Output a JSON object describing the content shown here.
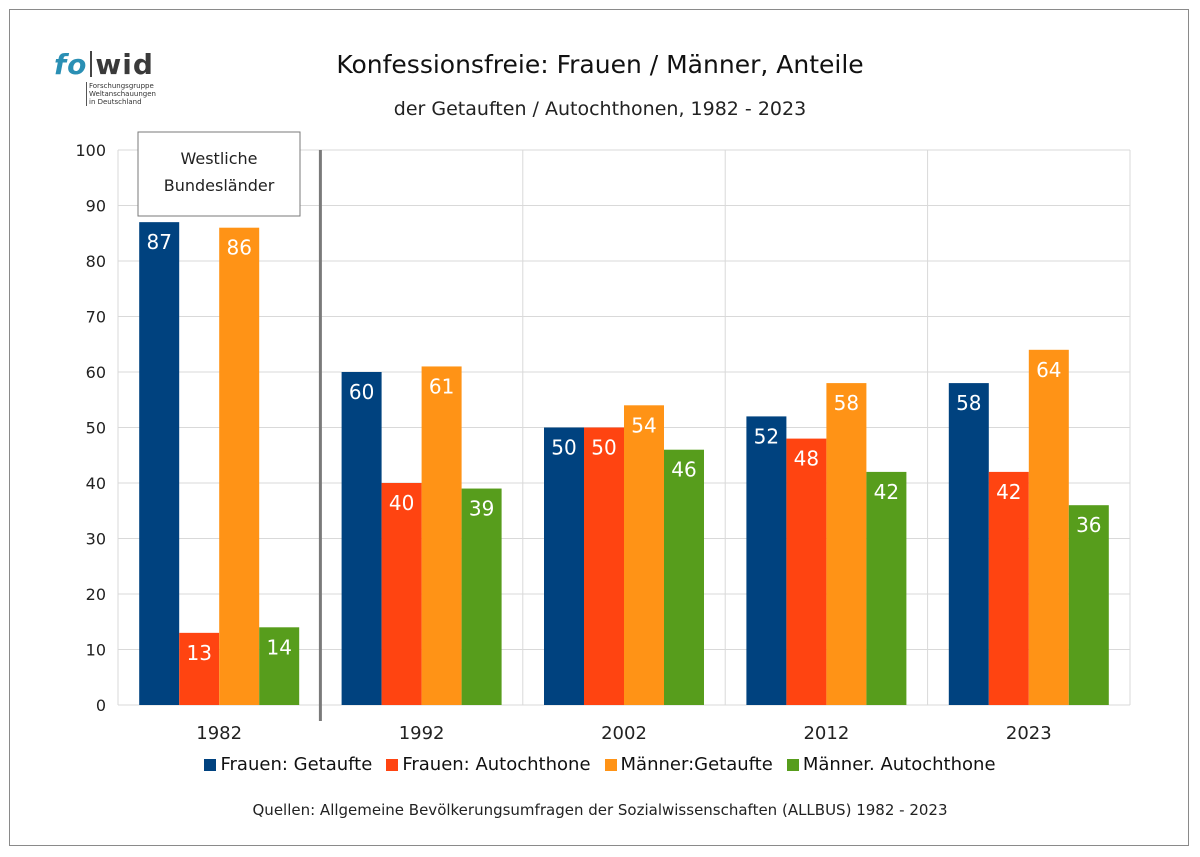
{
  "logo": {
    "word_a": "fo",
    "word_b": "wid",
    "sub": "Forschungsgruppe\nWeltanschauungen\nin Deutschland"
  },
  "chart_data": {
    "type": "bar",
    "title": "Konfessionsfreie: Frauen / Männer, Anteile",
    "subtitle": "der Getauften / Autochthonen, 1982 - 2023",
    "categories": [
      "1982",
      "1992",
      "2002",
      "2012",
      "2023"
    ],
    "series": [
      {
        "name": "Frauen: Getaufte",
        "color": "#00427f",
        "values": [
          87,
          60,
          50,
          52,
          58
        ]
      },
      {
        "name": "Frauen: Autochthone",
        "color": "#ff4411",
        "values": [
          13,
          40,
          50,
          48,
          42
        ]
      },
      {
        "name": "Männer:Getaufte",
        "color": "#ff9316",
        "values": [
          86,
          61,
          54,
          58,
          64
        ]
      },
      {
        "name": "Männer. Autochthone",
        "color": "#579d1c",
        "values": [
          14,
          39,
          46,
          42,
          36
        ]
      }
    ],
    "ylim": [
      0,
      100
    ],
    "yticks": [
      0,
      10,
      20,
      30,
      40,
      50,
      60,
      70,
      80,
      90,
      100
    ],
    "grid": true,
    "legend": "bottom",
    "annotation": "Westliche\nBundesländer",
    "source": "Quellen: Allgemeine Bevölkerungsumfragen der Sozialwissenschaften (ALLBUS) 1982 - 2023"
  }
}
